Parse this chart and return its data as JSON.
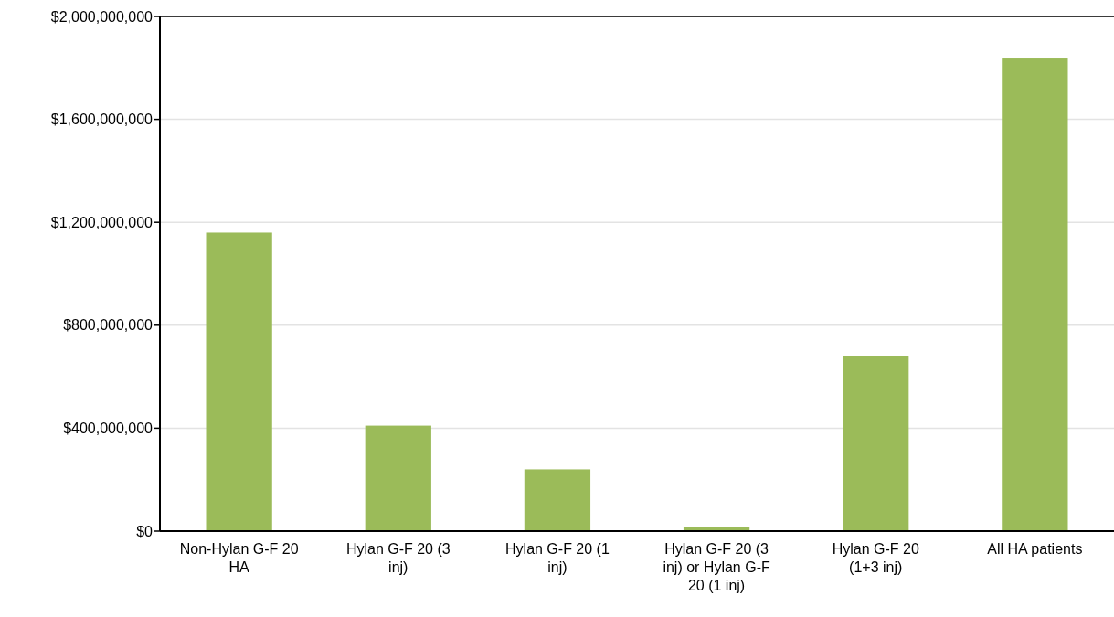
{
  "chart_data": {
    "type": "bar",
    "categories": [
      "Non-Hylan G-F 20 HA",
      "Hylan G-F 20 (3 inj)",
      "Hylan G-F 20 (1 inj)",
      "Hylan G-F 20 (3 inj) or Hylan G-F 20 (1 inj)",
      "Hylan G-F 20 (1+3 inj)",
      "All HA patients"
    ],
    "values": [
      1160000000,
      410000000,
      240000000,
      15000000,
      680000000,
      1840000000
    ],
    "color": "#9bbb59",
    "ylim": [
      0,
      2000000000
    ],
    "yticks": [
      {
        "value": 0,
        "label": "$0"
      },
      {
        "value": 400000000,
        "label": "$400,000,000"
      },
      {
        "value": 800000000,
        "label": "$800,000,000"
      },
      {
        "value": 1200000000,
        "label": "$1,200,000,000"
      },
      {
        "value": 1600000000,
        "label": "$1,600,000,000"
      },
      {
        "value": 2000000000,
        "label": "$2,000,000,000"
      }
    ],
    "grid": "y"
  }
}
